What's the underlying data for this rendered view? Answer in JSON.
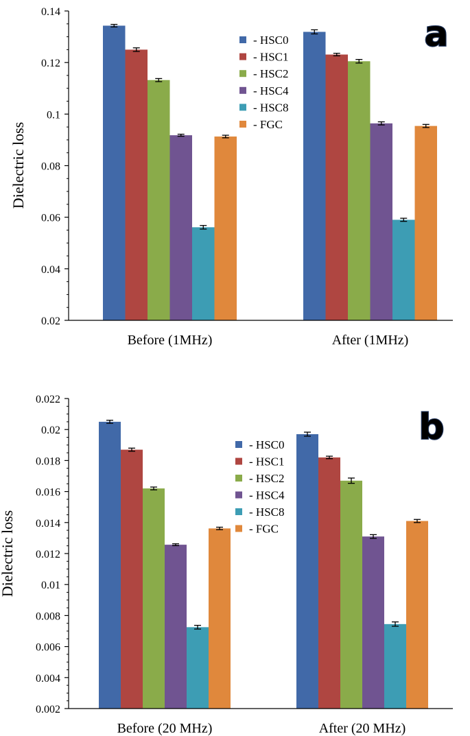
{
  "colors": {
    "HSC0": "#4169A8",
    "HSC1": "#AF4641",
    "HSC2": "#8AAB4A",
    "HSC4": "#705491",
    "HSC8": "#3D9DB4",
    "FGC": "#E0883C",
    "letter_fill": "#5A88C8",
    "letter_outline": "#22375E"
  },
  "chart_data": [
    {
      "type": "bar",
      "panel_label": "a",
      "title": "",
      "xlabel": "",
      "ylabel": "Dielectric loss",
      "ylim": [
        0.02,
        0.14
      ],
      "ytick_values": [
        0.02,
        0.04,
        0.06,
        0.08,
        0.1,
        0.12,
        0.14
      ],
      "ytick_labels": [
        "0.02",
        "0.04",
        "0.06",
        "0.08",
        "0.1",
        "0.12",
        "0.14"
      ],
      "categories": [
        "Before (1MHz)",
        "After (1MHz)"
      ],
      "legend_position": "top-right",
      "series": [
        {
          "key": "HSC0",
          "name": "- HSC0",
          "values": [
            0.1343,
            0.1319
          ],
          "errors": [
            0.0005,
            0.0008
          ]
        },
        {
          "key": "HSC1",
          "name": "- HSC1",
          "values": [
            0.125,
            0.1231
          ],
          "errors": [
            0.0007,
            0.0005
          ]
        },
        {
          "key": "HSC2",
          "name": "- HSC2",
          "values": [
            0.1132,
            0.1205
          ],
          "errors": [
            0.0006,
            0.0007
          ]
        },
        {
          "key": "HSC4",
          "name": "- HSC4",
          "values": [
            0.0918,
            0.0964
          ],
          "errors": [
            0.0004,
            0.0006
          ]
        },
        {
          "key": "HSC8",
          "name": "- HSC8",
          "values": [
            0.0561,
            0.059
          ],
          "errors": [
            0.0007,
            0.0006
          ]
        },
        {
          "key": "FGC",
          "name": "- FGC",
          "values": [
            0.0913,
            0.0954
          ],
          "errors": [
            0.0005,
            0.0006
          ]
        }
      ]
    },
    {
      "type": "bar",
      "panel_label": "b",
      "title": "",
      "xlabel": "",
      "ylabel": "Dielectric loss",
      "ylim": [
        0.002,
        0.022
      ],
      "ytick_values": [
        0.002,
        0.004,
        0.006,
        0.008,
        0.01,
        0.012,
        0.014,
        0.016,
        0.018,
        0.02,
        0.022
      ],
      "ytick_labels": [
        "0.002",
        "0.004",
        "0.006",
        "0.008",
        "0.01",
        "0.012",
        "0.014",
        "0.016",
        "0.018",
        "0.02",
        "0.022"
      ],
      "categories": [
        "Before (20 MHz)",
        "After (20 MHz)"
      ],
      "legend_position": "top-right",
      "series": [
        {
          "key": "HSC0",
          "name": "- HSC0",
          "values": [
            0.0205,
            0.0197
          ],
          "errors": [
            0.0001,
            0.00013
          ]
        },
        {
          "key": "HSC1",
          "name": "- HSC1",
          "values": [
            0.0187,
            0.0182
          ],
          "errors": [
            0.0001,
            8e-05
          ]
        },
        {
          "key": "HSC2",
          "name": "- HSC2",
          "values": [
            0.0162,
            0.0167
          ],
          "errors": [
            9e-05,
            0.00017
          ]
        },
        {
          "key": "HSC4",
          "name": "- HSC4",
          "values": [
            0.01257,
            0.0131
          ],
          "errors": [
            6e-05,
            0.00012
          ]
        },
        {
          "key": "HSC8",
          "name": "- HSC8",
          "values": [
            0.00725,
            0.00745
          ],
          "errors": [
            0.00012,
            0.00014
          ]
        },
        {
          "key": "FGC",
          "name": "- FGC",
          "values": [
            0.01362,
            0.0141
          ],
          "errors": [
            8e-05,
            0.0001
          ]
        }
      ]
    }
  ]
}
